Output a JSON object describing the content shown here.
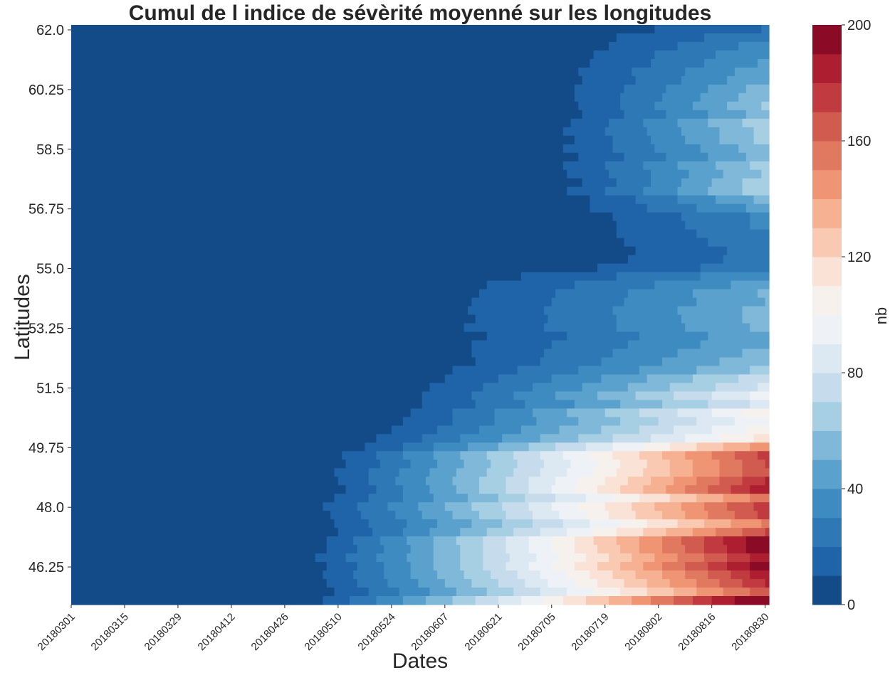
{
  "chart_data": {
    "type": "heatmap",
    "title": "Cumul de l indice de sévèrité moyenné sur les longitudes",
    "xlabel": "Dates",
    "ylabel": "Latitudes",
    "x_tick_labels": [
      "20180301",
      "20180315",
      "20180329",
      "20180412",
      "20180426",
      "20180510",
      "20180524",
      "20180607",
      "20180621",
      "20180705",
      "20180719",
      "20180802",
      "20180816",
      "20180830"
    ],
    "y_tick_labels": [
      "62.0",
      "60.25",
      "58.5",
      "56.75",
      "55.0",
      "53.25",
      "51.5",
      "49.75",
      "48.0",
      "46.25"
    ],
    "y_range": [
      45.0,
      62.0
    ],
    "colorbar": {
      "label": "nb",
      "range": [
        0,
        200
      ],
      "ticks": [
        "0",
        "40",
        "80",
        "120",
        "160",
        "200"
      ],
      "levels": 20,
      "cmap_colors": [
        "#134b88",
        "#1f63a8",
        "#2e78b5",
        "#3d8bc0",
        "#5aa2cd",
        "#7fb8d9",
        "#a6cfe4",
        "#c6dcec",
        "#dde9f2",
        "#eef2f6",
        "#f7f1ee",
        "#fbe2d6",
        "#f9cab1",
        "#f6b092",
        "#f09574",
        "#e17860",
        "#d15b4e",
        "#c13a3f",
        "#ad1e30",
        "#8b0b26"
      ]
    },
    "severity_profile": {
      "description_free": true,
      "latitude_nodes": [
        45.0,
        45.5,
        46.0,
        46.5,
        47.0,
        47.5,
        48.0,
        48.5,
        49.0,
        49.5,
        50.0,
        50.5,
        51.0,
        51.5,
        52.0,
        52.5,
        53.0,
        53.5,
        54.0,
        54.5,
        55.0,
        55.5,
        56.0,
        56.5,
        57.0,
        57.5,
        58.0,
        58.5,
        59.0,
        59.5,
        60.0,
        60.5,
        61.0,
        61.5,
        62.0
      ],
      "onset_date_index": [
        55,
        55,
        55,
        56,
        57,
        57,
        58,
        60,
        61,
        64,
        68,
        72,
        76,
        79,
        82,
        82,
        81,
        81,
        82,
        83,
        116,
        117,
        118,
        120,
        120,
        119,
        117,
        116,
        117,
        118,
        115,
        114,
        115,
        117,
        118
      ],
      "final_value": [
        200,
        180,
        195,
        200,
        185,
        160,
        175,
        170,
        185,
        160,
        115,
        100,
        90,
        80,
        60,
        55,
        50,
        55,
        48,
        45,
        22,
        28,
        30,
        35,
        60,
        70,
        62,
        60,
        65,
        60,
        55,
        45,
        40,
        30,
        20
      ]
    }
  }
}
